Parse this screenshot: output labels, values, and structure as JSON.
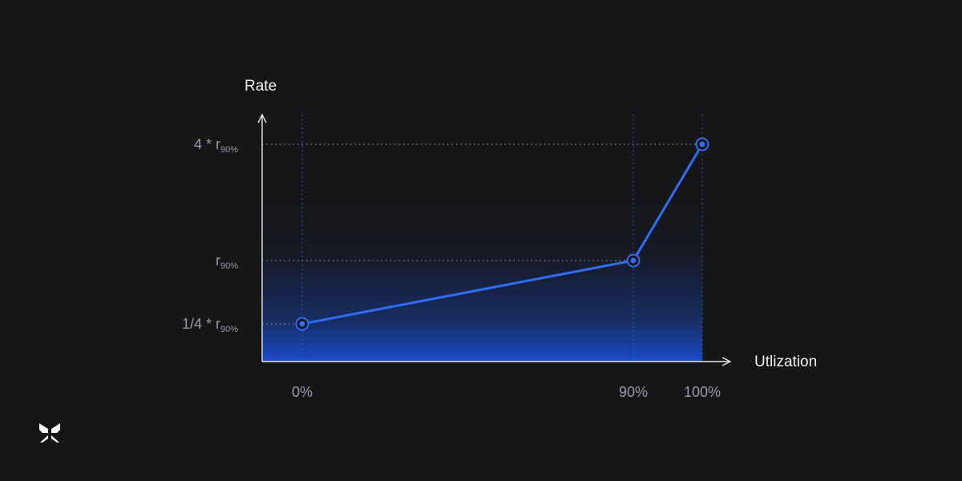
{
  "chart_data": {
    "type": "line",
    "title": "",
    "xlabel": "Utlization",
    "ylabel": "Rate",
    "x_ticks": [
      {
        "value": 0,
        "label": "0%"
      },
      {
        "value": 90,
        "label": "90%"
      },
      {
        "value": 100,
        "label": "100%"
      }
    ],
    "y_ticks": [
      {
        "value": 0.25,
        "main": "1/4 * r",
        "sub": "90%"
      },
      {
        "value": 1,
        "main": "r",
        "sub": "90%"
      },
      {
        "value": 4,
        "main": "4 * r",
        "sub": "90%"
      }
    ],
    "series": [
      {
        "points": [
          {
            "x": 0,
            "y": 0.25
          },
          {
            "x": 90,
            "y": 1
          },
          {
            "x": 100,
            "y": 4
          }
        ]
      }
    ],
    "colors": {
      "line": "#2f6df5",
      "axis": "#e6e6e6",
      "grid": "#8c8c92",
      "fill": "#1a55e8",
      "background": "#161618"
    }
  },
  "logo": {
    "icon": "butterfly-logo-icon"
  }
}
